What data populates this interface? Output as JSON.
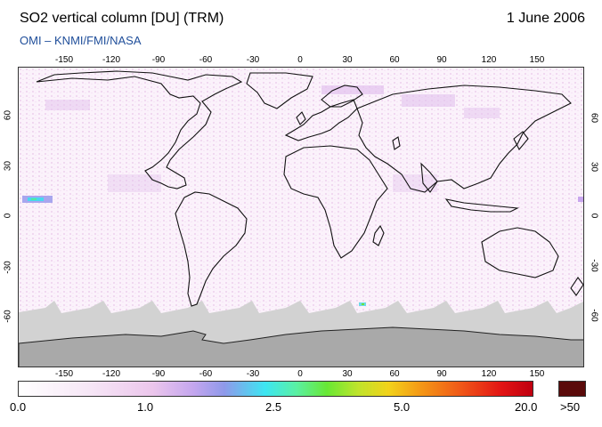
{
  "header": {
    "title": "SO2 vertical column [DU] (TRM)",
    "date": "1 June 2006",
    "subtitle": "OMI  –  KNMI/FMI/NASA"
  },
  "map": {
    "lon_ticks": [
      "-150",
      "-120",
      "-90",
      "-60",
      "-30",
      "0",
      "30",
      "60",
      "90",
      "120",
      "150"
    ],
    "lat_ticks": [
      "60",
      "30",
      "0",
      "-30",
      "-60"
    ]
  },
  "colorbar": {
    "labels": [
      "0.0",
      "1.0",
      "2.5",
      "5.0",
      "20.0"
    ],
    "over_label": ">50"
  }
}
